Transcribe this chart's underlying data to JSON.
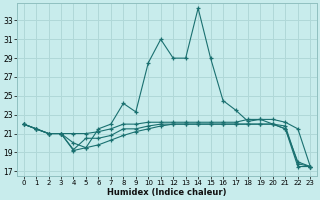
{
  "xlabel": "Humidex (Indice chaleur)",
  "background_color": "#c8ecec",
  "grid_color": "#b0d8d8",
  "line_color": "#1a7070",
  "xlim": [
    -0.5,
    23.5
  ],
  "ylim": [
    16.5,
    34.8
  ],
  "yticks": [
    17,
    19,
    21,
    23,
    25,
    27,
    29,
    31,
    33
  ],
  "xticks": [
    0,
    1,
    2,
    3,
    4,
    5,
    6,
    7,
    8,
    9,
    10,
    11,
    12,
    13,
    14,
    15,
    16,
    17,
    18,
    19,
    20,
    21,
    22,
    23
  ],
  "line1_x": [
    0,
    1,
    2,
    3,
    4,
    5,
    6,
    7,
    8,
    9,
    10,
    11,
    12,
    13,
    14,
    15,
    16,
    17,
    18,
    19,
    20,
    21,
    22,
    23
  ],
  "line1_y": [
    22.0,
    21.5,
    21.0,
    21.0,
    20.0,
    19.5,
    21.5,
    22.0,
    24.2,
    23.3,
    28.5,
    31.0,
    29.0,
    29.0,
    34.3,
    29.0,
    24.5,
    23.5,
    22.3,
    22.5,
    22.0,
    21.5,
    18.0,
    17.5
  ],
  "line2_x": [
    0,
    1,
    2,
    3,
    4,
    5,
    6,
    7,
    8,
    9,
    10,
    11,
    12,
    13,
    14,
    15,
    16,
    17,
    18,
    19,
    20,
    21,
    22,
    23
  ],
  "line2_y": [
    22.0,
    21.5,
    21.0,
    21.0,
    21.0,
    21.0,
    21.2,
    21.5,
    22.0,
    22.0,
    22.2,
    22.2,
    22.2,
    22.2,
    22.2,
    22.2,
    22.2,
    22.2,
    22.5,
    22.5,
    22.5,
    22.2,
    21.5,
    17.5
  ],
  "line3_x": [
    0,
    1,
    2,
    3,
    4,
    5,
    6,
    7,
    8,
    9,
    10,
    11,
    12,
    13,
    14,
    15,
    16,
    17,
    18,
    19,
    20,
    21,
    22,
    23
  ],
  "line3_y": [
    22.0,
    21.5,
    21.0,
    21.0,
    19.3,
    20.5,
    20.5,
    20.8,
    21.5,
    21.5,
    21.8,
    22.0,
    22.0,
    22.0,
    22.0,
    22.0,
    22.0,
    22.0,
    22.0,
    22.0,
    22.0,
    21.5,
    17.5,
    17.5
  ],
  "line4_x": [
    0,
    1,
    2,
    3,
    4,
    5,
    6,
    7,
    8,
    9,
    10,
    11,
    12,
    13,
    14,
    15,
    16,
    17,
    18,
    19,
    20,
    21,
    22,
    23
  ],
  "line4_y": [
    22.0,
    21.5,
    21.0,
    21.0,
    19.2,
    19.5,
    19.8,
    20.3,
    20.8,
    21.2,
    21.5,
    21.8,
    22.0,
    22.0,
    22.0,
    22.0,
    22.0,
    22.0,
    22.0,
    22.0,
    22.0,
    21.8,
    17.8,
    17.5
  ]
}
